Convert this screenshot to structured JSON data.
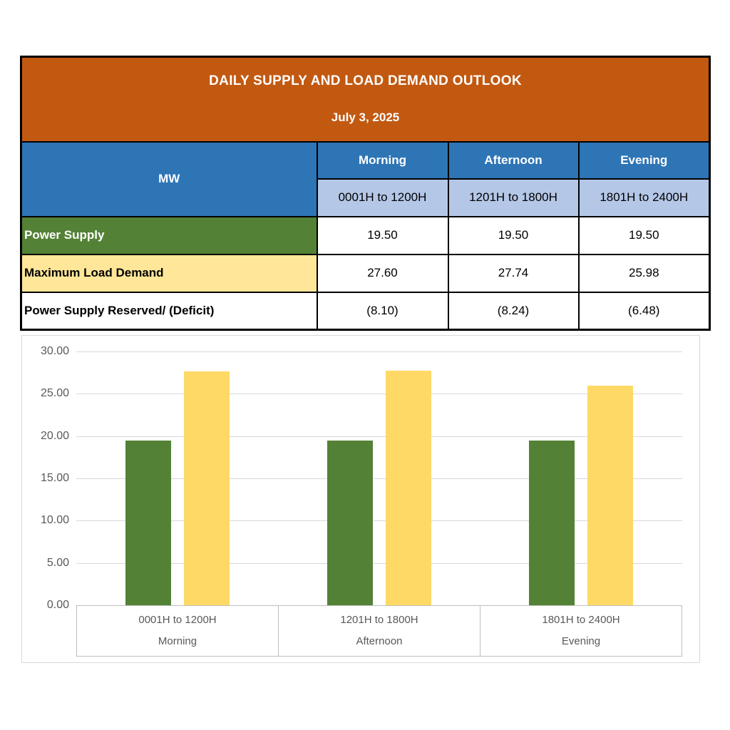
{
  "table": {
    "title": "DAILY SUPPLY AND LOAD DEMAND OUTLOOK",
    "date": "July 3, 2025",
    "unit_label": "MW",
    "periods": [
      {
        "name": "Morning",
        "range": "0001H to 1200H"
      },
      {
        "name": "Afternoon",
        "range": "1201H to 1800H"
      },
      {
        "name": "Evening",
        "range": "1801H to 2400H"
      }
    ],
    "rows": [
      {
        "label": "Power Supply",
        "values": [
          "19.50",
          "19.50",
          "19.50"
        ]
      },
      {
        "label": "Maximum Load Demand",
        "values": [
          "27.60",
          "27.74",
          "25.98"
        ]
      },
      {
        "label": "Power Supply Reserved/ (Deficit)",
        "values": [
          "(8.10)",
          "(8.24)",
          "(6.48)"
        ]
      }
    ]
  },
  "chart_data": {
    "type": "bar",
    "title": "",
    "categories": [
      "0001H to 1200H",
      "1201H to 1800H",
      "1801H to 2400H"
    ],
    "category_groups": [
      "Morning",
      "Afternoon",
      "Evening"
    ],
    "series": [
      {
        "name": "Power Supply",
        "color": "#538135",
        "values": [
          19.5,
          19.5,
          19.5
        ]
      },
      {
        "name": "Maximum Load Demand",
        "color": "#FFD966",
        "values": [
          27.6,
          27.74,
          25.98
        ]
      }
    ],
    "xlabel": "",
    "ylabel": "",
    "ylim": [
      0,
      30
    ],
    "ytick_step": 5,
    "ytick_decimals": 2,
    "grid": true,
    "legend": "none"
  },
  "colors": {
    "header_orange": "#C25911",
    "header_blue": "#2E75B6",
    "subheader_blue": "#B4C7E7",
    "row_green": "#538135",
    "row_yellow": "#FFE699",
    "bar_green": "#538135",
    "bar_yellow": "#FFD966",
    "grid": "#D9D9D9",
    "axis_text": "#595959"
  }
}
